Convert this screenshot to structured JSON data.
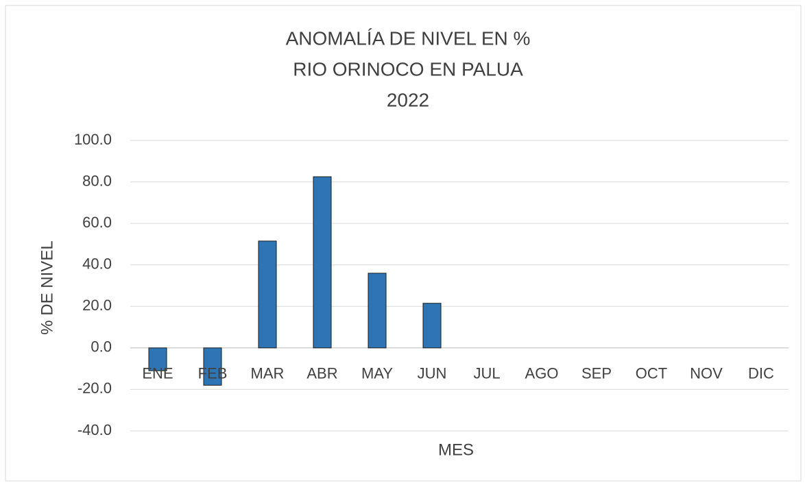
{
  "chart_data": {
    "type": "bar",
    "title": [
      "ANOMALÍA DE NIVEL EN %",
      "RIO ORINOCO EN PALUA",
      "2022"
    ],
    "x_label": "MES",
    "y_label": "% DE NIVEL",
    "categories": [
      "ENE",
      "FEB",
      "MAR",
      "ABR",
      "MAY",
      "JUN",
      "JUL",
      "AGO",
      "SEP",
      "OCT",
      "NOV",
      "DIC"
    ],
    "values": [
      -11,
      -18,
      51.5,
      82.5,
      36,
      21.5,
      null,
      null,
      null,
      null,
      null,
      null
    ],
    "color": "#2e75b6",
    "ylim": [
      -40,
      100
    ],
    "yticks": [
      {
        "value": 100,
        "label": "100.0"
      },
      {
        "value": 80,
        "label": "80.0"
      },
      {
        "value": 60,
        "label": "60.0"
      },
      {
        "value": 40,
        "label": "40.0"
      },
      {
        "value": 20,
        "label": "20.0"
      },
      {
        "value": 0,
        "label": "0.0"
      },
      {
        "value": -20,
        "label": "-20.0"
      },
      {
        "value": -40,
        "label": "-40.0"
      }
    ],
    "grid": true
  }
}
